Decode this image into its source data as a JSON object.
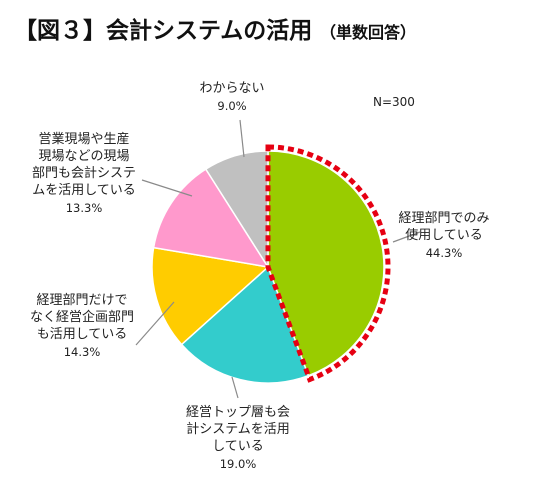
{
  "chart_data": {
    "type": "pie",
    "title": "【図３】会計システムの活用",
    "subtitle": "（単数回答）",
    "note": "N=300",
    "slices": [
      {
        "label_lines": [
          "経理部門でのみ",
          "使用している"
        ],
        "value": 44.3,
        "value_label": "44.3%",
        "color": "#99cc00",
        "highlighted": true
      },
      {
        "label_lines": [
          "経営トップ層も会",
          "計システムを活用",
          "している"
        ],
        "value": 19.0,
        "value_label": "19.0%",
        "color": "#33cccc"
      },
      {
        "label_lines": [
          "経理部門だけで",
          "なく経営企画部門",
          "も活用している"
        ],
        "value": 14.3,
        "value_label": "14.3%",
        "color": "#ffcc00"
      },
      {
        "label_lines": [
          "営業現場や生産",
          "現場などの現場",
          "部門も会計システ",
          "ムを活用している"
        ],
        "value": 13.3,
        "value_label": "13.3%",
        "color": "#ff99cc"
      },
      {
        "label_lines": [
          "わからない"
        ],
        "value": 9.0,
        "value_label": "9.0%",
        "color": "#c0c0c0"
      }
    ],
    "start_angle": "12 o'clock",
    "direction": "clockwise",
    "highlight_style": "red dashed outline"
  }
}
